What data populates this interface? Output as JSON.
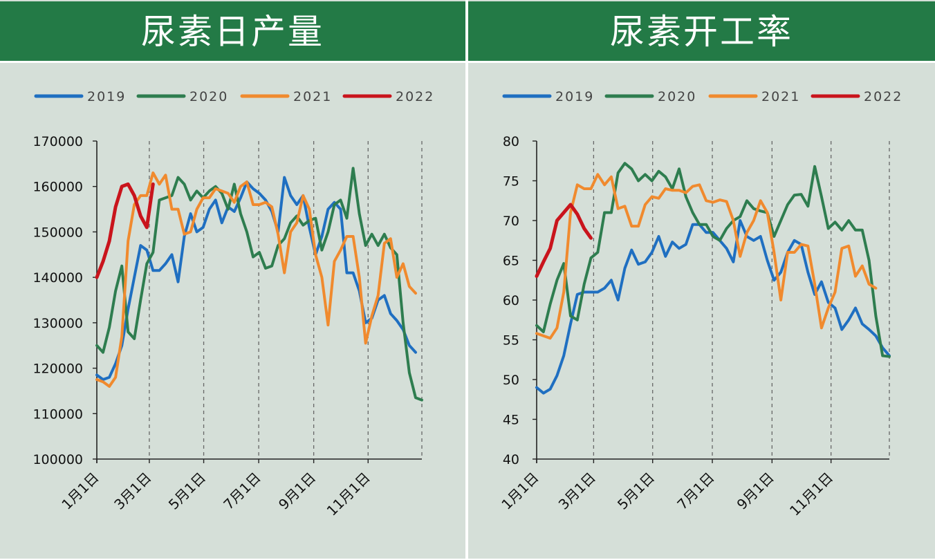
{
  "colors": {
    "header": "#237a46",
    "panel": "#d5dfd8",
    "s2019": "#1f6fc1",
    "s2020": "#2e7d4f",
    "s2021": "#f08a2e",
    "s2022": "#c9141c"
  },
  "chart_data": [
    {
      "type": "line",
      "title": "尿素日产量",
      "xlabel": "",
      "ylabel": "",
      "ylim": [
        100000,
        170000
      ],
      "yticks": [
        "170000",
        "160000",
        "150000",
        "140000",
        "130000",
        "120000",
        "110000",
        "100000"
      ],
      "x_domain_weeks": [
        0,
        52
      ],
      "xticks": [
        {
          "label": "1月1日",
          "week": 0
        },
        {
          "label": "3月1日",
          "week": 8.4
        },
        {
          "label": "5月1日",
          "week": 17.1
        },
        {
          "label": "7月1日",
          "week": 25.9
        },
        {
          "label": "9月1日",
          "week": 34.7
        },
        {
          "label": "11月1日",
          "week": 43.4
        }
      ],
      "grid": "vertical-dashed",
      "legend": "top",
      "series": [
        {
          "name": "2019",
          "values": [
            118500,
            117500,
            118000,
            121000,
            125000,
            133000,
            140000,
            147000,
            146000,
            141500,
            141500,
            143000,
            145000,
            139000,
            149000,
            154000,
            150000,
            151000,
            155000,
            157000,
            152000,
            155500,
            154500,
            157500,
            161000,
            159500,
            158500,
            157000,
            154500,
            150000,
            162000,
            158000,
            156000,
            158000,
            151000,
            145000,
            149000,
            155000,
            156500,
            155000,
            141000,
            141000,
            137000,
            130000,
            131000,
            135000,
            136000,
            132000,
            130500,
            128500,
            125000,
            123500
          ]
        },
        {
          "name": "2020",
          "values": [
            125000,
            123500,
            129000,
            137000,
            142500,
            128000,
            126500,
            135000,
            143000,
            145500,
            157000,
            157500,
            158000,
            162000,
            160500,
            157000,
            159000,
            157500,
            159000,
            160000,
            158500,
            155000,
            160500,
            154000,
            150000,
            144500,
            145500,
            142000,
            142500,
            147000,
            148500,
            152000,
            153500,
            151500,
            152500,
            153000,
            146000,
            150000,
            156000,
            157000,
            153000,
            164000,
            154000,
            147000,
            149500,
            147000,
            149500,
            146500,
            145000,
            130000,
            119000,
            113500,
            113000
          ]
        },
        {
          "name": "2021",
          "values": [
            117500,
            117000,
            116000,
            118000,
            127000,
            148000,
            156000,
            158000,
            158000,
            163000,
            160500,
            162500,
            155000,
            155000,
            149500,
            150000,
            155000,
            157500,
            157500,
            159500,
            159000,
            158500,
            156500,
            160000,
            161000,
            156000,
            156000,
            156500,
            155500,
            149500,
            141000,
            150000,
            152000,
            158000,
            155000,
            145000,
            140000,
            129500,
            143500,
            146000,
            149000,
            149000,
            140000,
            125500,
            131500,
            136000,
            147500,
            148500,
            140000,
            143000,
            138000,
            136500
          ]
        },
        {
          "name": "2022",
          "values": [
            140000,
            143500,
            148000,
            155500,
            160000,
            160500,
            158000,
            153500,
            151000,
            160500
          ]
        }
      ]
    },
    {
      "type": "line",
      "title": "尿素开工率",
      "xlabel": "",
      "ylabel": "",
      "ylim": [
        40,
        80
      ],
      "yticks": [
        "80",
        "75",
        "70",
        "65",
        "60",
        "55",
        "50",
        "45",
        "40"
      ],
      "x_domain_weeks": [
        0,
        52
      ],
      "xticks": [
        {
          "label": "1月1日",
          "week": 0
        },
        {
          "label": "3月1日",
          "week": 8.4
        },
        {
          "label": "5月1日",
          "week": 17.1
        },
        {
          "label": "7月1日",
          "week": 25.9
        },
        {
          "label": "9月1日",
          "week": 34.7
        },
        {
          "label": "11月1日",
          "week": 43.4
        }
      ],
      "grid": "vertical-dashed",
      "legend": "top",
      "series": [
        {
          "name": "2019",
          "values": [
            49,
            48.3,
            48.8,
            50.5,
            53,
            57,
            60.7,
            61,
            61,
            61,
            61.5,
            62.5,
            60,
            64,
            66.3,
            64.5,
            64.8,
            66,
            68,
            65.5,
            67.3,
            66.5,
            67,
            69.5,
            69.5,
            68.5,
            68.5,
            67.5,
            66.5,
            64.8,
            70,
            68,
            67.5,
            68,
            65,
            62.5,
            63.5,
            66,
            67.5,
            67,
            63.5,
            60.7,
            62.3,
            59.7,
            59,
            56.3,
            57.5,
            59,
            57,
            56.3,
            55.5,
            54,
            53
          ]
        },
        {
          "name": "2020",
          "values": [
            56.8,
            56,
            59.5,
            62.5,
            64.6,
            58,
            57.5,
            62,
            65.3,
            66,
            71,
            71,
            76,
            77.2,
            76.5,
            75,
            75.8,
            75,
            76.2,
            75.5,
            74,
            76.5,
            73,
            71,
            69.5,
            69.5,
            68,
            67.5,
            69,
            70,
            70.5,
            72.5,
            71.5,
            71.2,
            71,
            68,
            70,
            72,
            73.2,
            73.3,
            71.8,
            76.8,
            73,
            69,
            69.8,
            68.8,
            70,
            68.8,
            68.8,
            65,
            58,
            53,
            52.9
          ]
        },
        {
          "name": "2021",
          "values": [
            55.8,
            55.5,
            55.2,
            56.5,
            61,
            71,
            74.5,
            74,
            74,
            75.8,
            74.5,
            75.5,
            71.5,
            71.8,
            69.3,
            69.3,
            72,
            73,
            72.8,
            74,
            73.8,
            73.8,
            73.5,
            74.3,
            74.5,
            72.5,
            72.3,
            72.6,
            72.4,
            70,
            65.5,
            68.5,
            70,
            72.5,
            71,
            66,
            60,
            66,
            66,
            67,
            66.8,
            62,
            56.5,
            59,
            61,
            66.5,
            66.8,
            63,
            64.3,
            62,
            61.5
          ]
        },
        {
          "name": "2022",
          "values": [
            63,
            64.8,
            66.5,
            70,
            71,
            72,
            70.8,
            69,
            67.8
          ]
        }
      ]
    }
  ]
}
